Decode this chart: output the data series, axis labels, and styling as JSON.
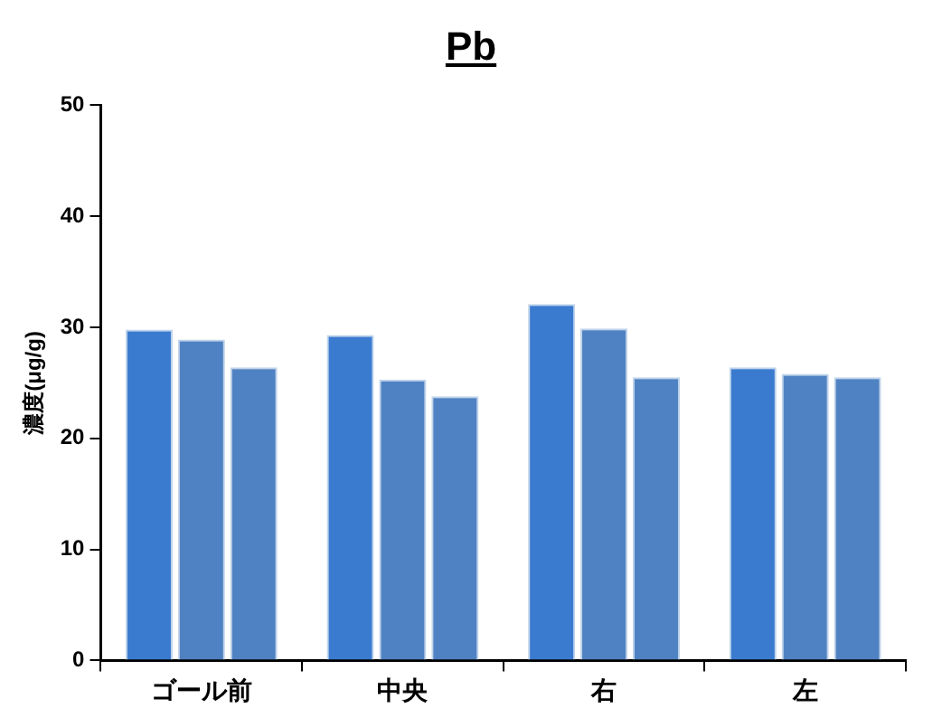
{
  "chart_data": {
    "type": "bar",
    "title": "Pb",
    "ylabel": "濃度(μg/g)",
    "categories": [
      "ゴール前",
      "中央",
      "右",
      "左"
    ],
    "series": [
      {
        "color": "#3a7bd0",
        "values": [
          29.8,
          29.3,
          32.1,
          26.4
        ]
      },
      {
        "color": "#4f82c2",
        "values": [
          28.9,
          25.3,
          29.9,
          25.8
        ]
      },
      {
        "color": "#4f82c2",
        "values": [
          26.4,
          23.8,
          25.5,
          25.5
        ]
      }
    ],
    "ylim": [
      0,
      50
    ],
    "yticks": [
      0,
      10,
      20,
      30,
      40,
      50
    ],
    "grid": false,
    "legend": false
  }
}
